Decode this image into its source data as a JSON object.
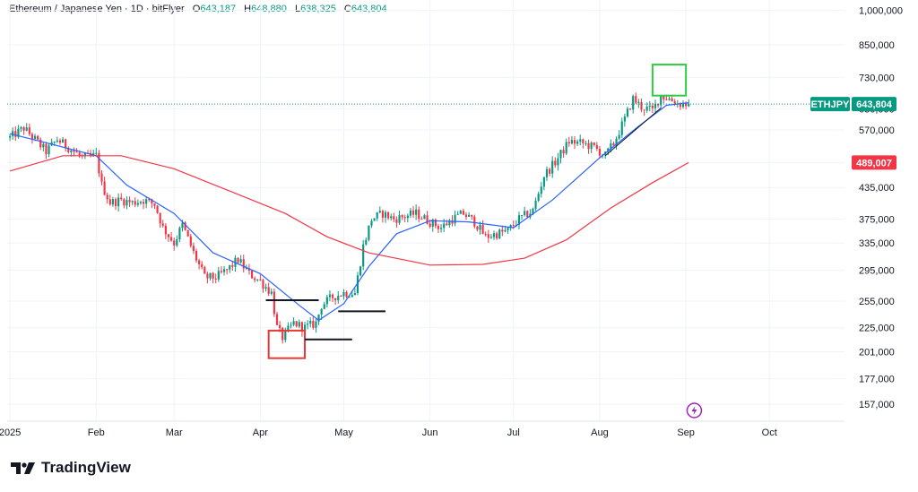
{
  "header": {
    "symbol": "Ethereum / Japanese Yen",
    "interval": "1D",
    "exchange": "bitFlyer",
    "open_label": "O",
    "open": "643,187",
    "high_label": "H",
    "high": "648,880",
    "low_label": "L",
    "low": "638,325",
    "close_label": "C",
    "close": "643,804"
  },
  "brand": {
    "name": "TradingView"
  },
  "colors": {
    "up": "#089981",
    "down": "#f23645",
    "ma_fast": "#2962ff",
    "ma_slow": "#f23645",
    "grid": "#f0f3fa",
    "axis_text": "#131722",
    "trend": "#131722",
    "box_red": "#e53935",
    "box_green": "#2ecc40",
    "bolt": "#9c27b0"
  },
  "chart_data": {
    "type": "candlestick",
    "symbol": "ETHJPY",
    "yscale": "log",
    "ylim": [
      145000,
      1050000
    ],
    "yticks": [
      1000000,
      850000,
      730000,
      630000,
      570000,
      489007,
      435000,
      375000,
      335000,
      295000,
      255000,
      225000,
      201000,
      177000,
      157000
    ],
    "ytick_labels": [
      "1,000,000",
      "850,000",
      "730,000",
      "630,000",
      "570,000",
      "",
      "435,000",
      "375,000",
      "335,000",
      "295,000",
      "255,000",
      "225,000",
      "201,000",
      "177,000",
      "157,000"
    ],
    "xlim": [
      "2024-12-31",
      "2025-10-28"
    ],
    "xticks": [
      {
        "date": "2025-01-01",
        "label": "2025"
      },
      {
        "date": "2025-02-01",
        "label": "Feb"
      },
      {
        "date": "2025-03-01",
        "label": "Mar"
      },
      {
        "date": "2025-04-01",
        "label": "Apr"
      },
      {
        "date": "2025-05-01",
        "label": "May"
      },
      {
        "date": "2025-06-01",
        "label": "Jun"
      },
      {
        "date": "2025-07-01",
        "label": "Jul"
      },
      {
        "date": "2025-08-01",
        "label": "Aug"
      },
      {
        "date": "2025-09-01",
        "label": "Sep"
      },
      {
        "date": "2025-10-01",
        "label": "Oct"
      }
    ],
    "close_path": [
      [
        "2025-01-01",
        550000
      ],
      [
        "2025-01-06",
        575000
      ],
      [
        "2025-01-10",
        545000
      ],
      [
        "2025-01-14",
        515000
      ],
      [
        "2025-01-18",
        545000
      ],
      [
        "2025-01-22",
        525000
      ],
      [
        "2025-01-27",
        500000
      ],
      [
        "2025-02-01",
        505000
      ],
      [
        "2025-02-03",
        440000
      ],
      [
        "2025-02-06",
        405000
      ],
      [
        "2025-02-10",
        410000
      ],
      [
        "2025-02-14",
        405000
      ],
      [
        "2025-02-18",
        410000
      ],
      [
        "2025-02-22",
        402000
      ],
      [
        "2025-02-25",
        360000
      ],
      [
        "2025-03-01",
        335000
      ],
      [
        "2025-03-04",
        365000
      ],
      [
        "2025-03-08",
        320000
      ],
      [
        "2025-03-12",
        285000
      ],
      [
        "2025-03-16",
        285000
      ],
      [
        "2025-03-20",
        295000
      ],
      [
        "2025-03-24",
        310000
      ],
      [
        "2025-03-28",
        290000
      ],
      [
        "2025-04-01",
        280000
      ],
      [
        "2025-04-05",
        265000
      ],
      [
        "2025-04-07",
        225000
      ],
      [
        "2025-04-09",
        215000
      ],
      [
        "2025-04-13",
        230000
      ],
      [
        "2025-04-17",
        225000
      ],
      [
        "2025-04-21",
        230000
      ],
      [
        "2025-04-23",
        250000
      ],
      [
        "2025-04-27",
        260000
      ],
      [
        "2025-05-01",
        265000
      ],
      [
        "2025-05-05",
        265000
      ],
      [
        "2025-05-08",
        330000
      ],
      [
        "2025-05-11",
        375000
      ],
      [
        "2025-05-15",
        385000
      ],
      [
        "2025-05-19",
        375000
      ],
      [
        "2025-05-23",
        380000
      ],
      [
        "2025-05-27",
        385000
      ],
      [
        "2025-06-01",
        370000
      ],
      [
        "2025-06-05",
        360000
      ],
      [
        "2025-06-09",
        375000
      ],
      [
        "2025-06-13",
        385000
      ],
      [
        "2025-06-17",
        370000
      ],
      [
        "2025-06-21",
        345000
      ],
      [
        "2025-06-25",
        350000
      ],
      [
        "2025-06-29",
        355000
      ],
      [
        "2025-07-03",
        375000
      ],
      [
        "2025-07-08",
        390000
      ],
      [
        "2025-07-12",
        460000
      ],
      [
        "2025-07-16",
        490000
      ],
      [
        "2025-07-21",
        540000
      ],
      [
        "2025-07-26",
        535000
      ],
      [
        "2025-07-30",
        525000
      ],
      [
        "2025-08-03",
        505000
      ],
      [
        "2025-08-06",
        535000
      ],
      [
        "2025-08-10",
        600000
      ],
      [
        "2025-08-13",
        660000
      ],
      [
        "2025-08-16",
        635000
      ],
      [
        "2025-08-20",
        625000
      ],
      [
        "2025-08-23",
        670000
      ],
      [
        "2025-08-26",
        660000
      ],
      [
        "2025-08-29",
        645000
      ],
      [
        "2025-09-02",
        643804
      ]
    ],
    "series": [
      {
        "name": "",
        "kind": "moving-average",
        "color": "#2962ff",
        "points": [
          [
            "2025-01-01",
            560000
          ],
          [
            "2025-01-15",
            535000
          ],
          [
            "2025-02-01",
            505000
          ],
          [
            "2025-02-12",
            440000
          ],
          [
            "2025-03-01",
            385000
          ],
          [
            "2025-03-15",
            320000
          ],
          [
            "2025-04-01",
            290000
          ],
          [
            "2025-04-15",
            250000
          ],
          [
            "2025-04-22",
            233000
          ],
          [
            "2025-05-01",
            252000
          ],
          [
            "2025-05-10",
            300000
          ],
          [
            "2025-05-20",
            350000
          ],
          [
            "2025-06-01",
            372000
          ],
          [
            "2025-06-15",
            370000
          ],
          [
            "2025-07-01",
            360000
          ],
          [
            "2025-07-15",
            410000
          ],
          [
            "2025-08-01",
            500000
          ],
          [
            "2025-08-15",
            580000
          ],
          [
            "2025-08-25",
            640000
          ],
          [
            "2025-09-02",
            648000
          ]
        ]
      },
      {
        "name": "",
        "kind": "moving-average",
        "color": "#f23645",
        "points": [
          [
            "2025-01-01",
            470000
          ],
          [
            "2025-01-20",
            505000
          ],
          [
            "2025-02-10",
            505000
          ],
          [
            "2025-03-01",
            475000
          ],
          [
            "2025-03-20",
            430000
          ],
          [
            "2025-04-10",
            385000
          ],
          [
            "2025-04-25",
            345000
          ],
          [
            "2025-05-10",
            320000
          ],
          [
            "2025-06-01",
            302000
          ],
          [
            "2025-06-20",
            303000
          ],
          [
            "2025-07-05",
            312000
          ],
          [
            "2025-07-20",
            340000
          ],
          [
            "2025-08-05",
            395000
          ],
          [
            "2025-08-20",
            445000
          ],
          [
            "2025-09-02",
            489007
          ]
        ]
      }
    ],
    "price_labels": [
      {
        "text": "ETHJPY",
        "value": 643804,
        "kind": "symbol-tag",
        "color": "#089981"
      },
      {
        "text": "643,804",
        "value": 643804,
        "kind": "last-price",
        "color": "#089981"
      },
      {
        "text": "489,007",
        "value": 489007,
        "kind": "ma-price",
        "color": "#f23645"
      }
    ],
    "annotations": [
      {
        "kind": "box",
        "color": "#e53935",
        "x": [
          "2025-04-04",
          "2025-04-17"
        ],
        "y": [
          195000,
          222000
        ]
      },
      {
        "kind": "box",
        "color": "#2ecc40",
        "x": [
          "2025-08-20",
          "2025-09-01"
        ],
        "y": [
          670000,
          775000
        ]
      },
      {
        "kind": "hline",
        "color": "#131722",
        "x": [
          "2025-04-03",
          "2025-04-22"
        ],
        "y": 256000
      },
      {
        "kind": "hline",
        "color": "#131722",
        "x": [
          "2025-04-17",
          "2025-05-04"
        ],
        "y": 213000
      },
      {
        "kind": "hline",
        "color": "#131722",
        "x": [
          "2025-04-29",
          "2025-05-16"
        ],
        "y": 243000
      },
      {
        "kind": "trendline",
        "color": "#131722",
        "x": [
          "2025-08-03",
          "2025-08-23"
        ],
        "y": [
          505000,
          632000
        ]
      }
    ]
  }
}
